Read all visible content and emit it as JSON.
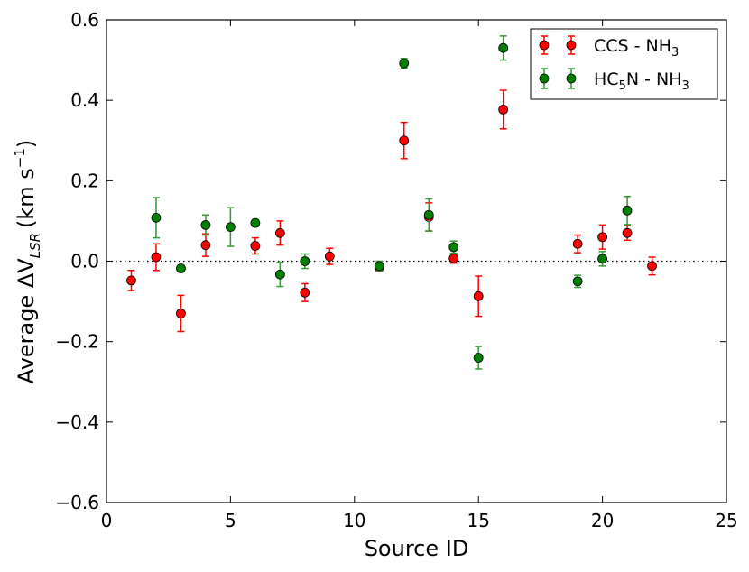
{
  "chart_data": {
    "type": "scatter",
    "xlabel": "Source ID",
    "ylabel": "Average ΔV",
    "ylabel_sub": "LSR",
    "ylabel_units_pre": "(km s",
    "ylabel_units_exp": "−1",
    "ylabel_units_post": ")",
    "xlim": [
      0,
      25
    ],
    "ylim": [
      -0.6,
      0.6
    ],
    "xticks": [
      0,
      5,
      10,
      15,
      20,
      25
    ],
    "xtick_labels": [
      "0",
      "5",
      "10",
      "15",
      "20",
      "25"
    ],
    "yticks": [
      -0.6,
      -0.4,
      -0.2,
      0.0,
      0.2,
      0.4,
      0.6
    ],
    "ytick_labels": [
      "−0.6",
      "−0.4",
      "−0.2",
      "0.0",
      "0.2",
      "0.4",
      "0.6"
    ],
    "zero_line": true,
    "legend_position": "top-right",
    "series": [
      {
        "name": "CCS - NH3",
        "label_main": "CCS - NH",
        "label_sub": "3",
        "color": "#ff0000",
        "errcolor": "#ff0000",
        "points": [
          {
            "x": 1,
            "y": -0.048,
            "err": 0.025
          },
          {
            "x": 2,
            "y": 0.01,
            "err": 0.033
          },
          {
            "x": 3,
            "y": -0.13,
            "err": 0.045
          },
          {
            "x": 4,
            "y": 0.04,
            "err": 0.028
          },
          {
            "x": 6,
            "y": 0.038,
            "err": 0.02
          },
          {
            "x": 7,
            "y": 0.07,
            "err": 0.03
          },
          {
            "x": 8,
            "y": -0.078,
            "err": 0.022
          },
          {
            "x": 9,
            "y": 0.012,
            "err": 0.02
          },
          {
            "x": 11,
            "y": -0.015,
            "err": 0.01
          },
          {
            "x": 12,
            "y": 0.3,
            "err": 0.045
          },
          {
            "x": 13,
            "y": 0.11,
            "err": 0.035
          },
          {
            "x": 14,
            "y": 0.007,
            "err": 0.012
          },
          {
            "x": 15,
            "y": -0.087,
            "err": 0.05
          },
          {
            "x": 16,
            "y": 0.377,
            "err": 0.048
          },
          {
            "x": 19,
            "y": 0.043,
            "err": 0.022
          },
          {
            "x": 20,
            "y": 0.06,
            "err": 0.03
          },
          {
            "x": 21,
            "y": 0.07,
            "err": 0.018
          },
          {
            "x": 22,
            "y": -0.012,
            "err": 0.022
          }
        ]
      },
      {
        "name": "HC5N - NH3",
        "label_main": "HC",
        "label_sub1": "5",
        "label_mid": "N - NH",
        "label_sub": "3",
        "color": "#007f00",
        "errcolor": "#339933",
        "points": [
          {
            "x": 2,
            "y": 0.108,
            "err": 0.05
          },
          {
            "x": 3,
            "y": -0.018,
            "err": 0.008
          },
          {
            "x": 4,
            "y": 0.09,
            "err": 0.025
          },
          {
            "x": 5,
            "y": 0.085,
            "err": 0.048
          },
          {
            "x": 6,
            "y": 0.095,
            "err": 0.008
          },
          {
            "x": 7,
            "y": -0.033,
            "err": 0.03
          },
          {
            "x": 8,
            "y": 0.0,
            "err": 0.018
          },
          {
            "x": 11,
            "y": -0.012,
            "err": 0.012
          },
          {
            "x": 12,
            "y": 0.492,
            "err": 0.012
          },
          {
            "x": 13,
            "y": 0.115,
            "err": 0.04
          },
          {
            "x": 14,
            "y": 0.035,
            "err": 0.015
          },
          {
            "x": 15,
            "y": -0.24,
            "err": 0.028
          },
          {
            "x": 16,
            "y": 0.53,
            "err": 0.03
          },
          {
            "x": 19,
            "y": -0.05,
            "err": 0.015
          },
          {
            "x": 20,
            "y": 0.006,
            "err": 0.018
          },
          {
            "x": 21,
            "y": 0.126,
            "err": 0.035
          }
        ]
      }
    ]
  }
}
